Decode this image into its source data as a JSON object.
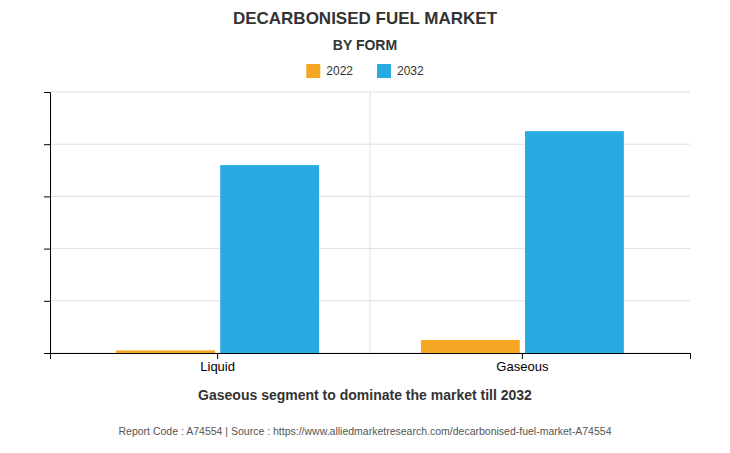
{
  "chart_data": {
    "type": "bar",
    "title": "DECARBONISED FUEL MARKET",
    "subtitle": "BY FORM",
    "categories": [
      "Liquid",
      "Gaseous"
    ],
    "series": [
      {
        "name": "2022",
        "color": "#F5A623",
        "values": [
          1.0,
          5.0
        ]
      },
      {
        "name": "2032",
        "color": "#29ABE2",
        "values": [
          72,
          85
        ]
      }
    ],
    "ylim": [
      0,
      100
    ],
    "yticks": [
      0,
      20,
      40,
      60,
      80,
      100
    ],
    "grid": true,
    "tick_labels": "x",
    "legend": "top",
    "annotations": [
      "Gaseous segment to dominate the market till 2032",
      "Report Code : A74554  |  Source : https://www.alliedmarketresearch.com/decarbonised-fuel-market-A74554"
    ]
  }
}
